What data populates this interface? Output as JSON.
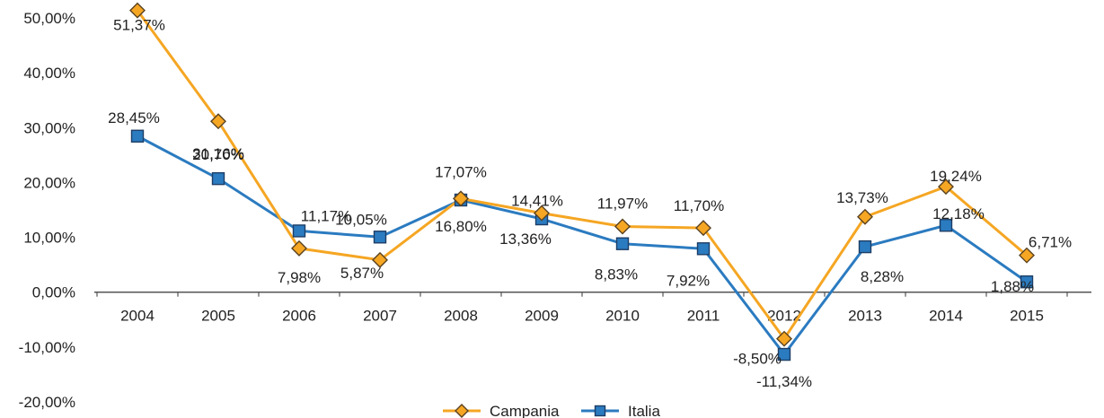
{
  "chart_data": {
    "type": "line",
    "categories": [
      "2004",
      "2005",
      "2006",
      "2007",
      "2008",
      "2009",
      "2010",
      "2011",
      "2012",
      "2013",
      "2014",
      "2015"
    ],
    "series": [
      {
        "name": "Campania",
        "values": [
          51.37,
          31.16,
          7.98,
          5.87,
          17.07,
          14.41,
          11.97,
          11.7,
          -8.5,
          13.73,
          19.24,
          6.71
        ],
        "labels": [
          "51,37%",
          "31,16%",
          "7,98%",
          "5,87%",
          "17,07%",
          "14,41%",
          "11,97%",
          "11,70%",
          "-8,50%",
          "13,73%",
          "19,24%",
          "6,71%"
        ],
        "color": "#F5A623",
        "marker": "diamond"
      },
      {
        "name": "Italia",
        "values": [
          28.45,
          20.7,
          11.17,
          10.05,
          16.8,
          13.36,
          8.83,
          7.92,
          -11.34,
          8.28,
          12.18,
          1.88
        ],
        "labels": [
          "28,45%",
          "20,70%",
          "11,17%",
          "10,05%",
          "16,80%",
          "13,36%",
          "8,83%",
          "7,92%",
          "-11,34%",
          "8,28%",
          "12,18%",
          "1,88%"
        ],
        "color": "#2B7BC0",
        "marker": "square"
      }
    ],
    "y_ticks": [
      50,
      40,
      30,
      20,
      10,
      0,
      -10,
      -20
    ],
    "y_tick_labels": [
      "50,00%",
      "40,00%",
      "30,00%",
      "20,00%",
      "10,00%",
      "0,00%",
      "-10,00%",
      "-20,00%"
    ],
    "ylim": [
      -20,
      50
    ],
    "grid": false,
    "legend_position": "bottom-center",
    "title": "",
    "xlabel": "",
    "ylabel": ""
  }
}
